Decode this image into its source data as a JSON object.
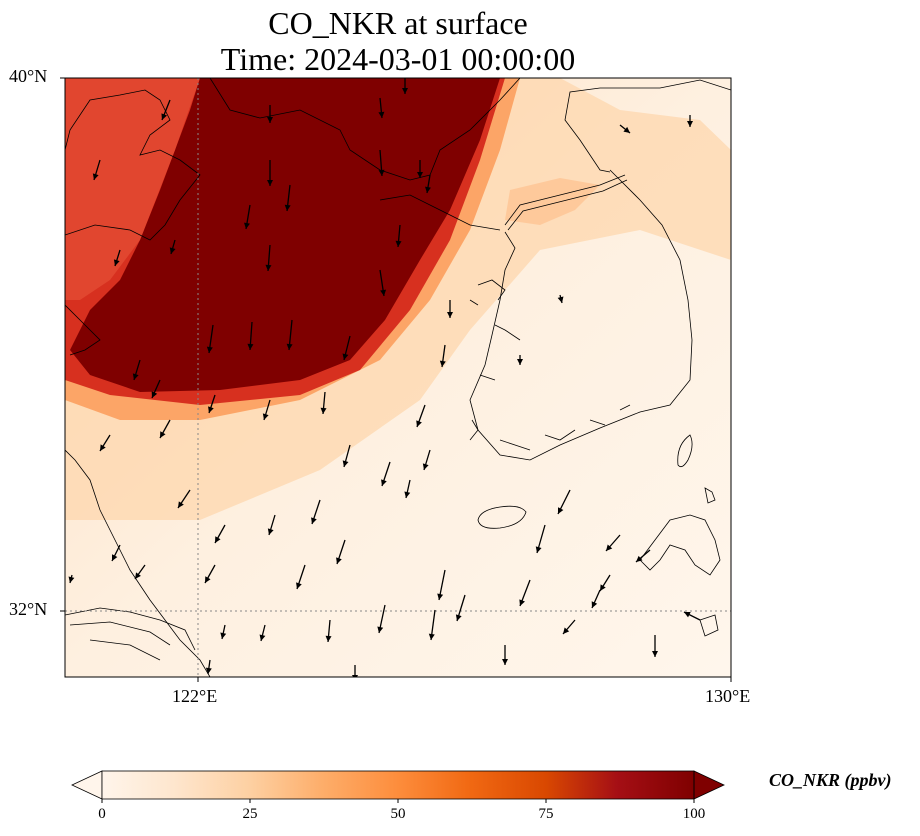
{
  "title_line1": "CO_NKR at surface",
  "title_line2": "Time: 2024-03-01 00:00:00",
  "lat_labels": [
    "40°N",
    "32°N"
  ],
  "lon_labels": [
    "122°E",
    "130°E"
  ],
  "colorbar": {
    "label": "CO_NKR (ppbv)",
    "ticks": [
      "0",
      "25",
      "50",
      "75",
      "100"
    ],
    "colors": [
      "#fff5eb",
      "#fee6ce",
      "#fdd0a2",
      "#fdae6b",
      "#fd8d3c",
      "#f16913",
      "#d94801",
      "#a50f15",
      "#7f0000"
    ]
  },
  "map_extent": {
    "lon": [
      120,
      130
    ],
    "lat": [
      31,
      40
    ]
  },
  "gridlines": {
    "lon": [
      122
    ],
    "lat": [
      32
    ]
  }
}
